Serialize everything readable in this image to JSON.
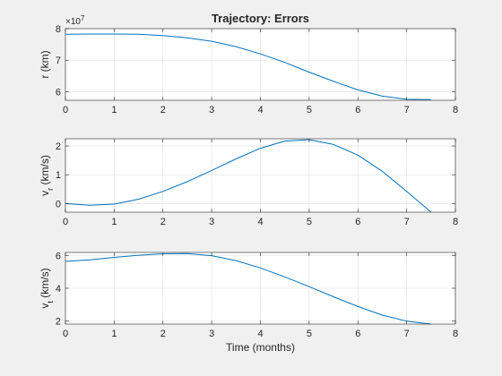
{
  "figure": {
    "title": "Trajectory: Errors",
    "background": "#f0f0f0",
    "axes_background": "#ffffff",
    "line_color": "#0072bd",
    "grid_color": "#dfdfdf",
    "axis_color": "#262626"
  },
  "chart_data": [
    {
      "type": "line",
      "title": "Trajectory: Errors",
      "xlabel": "",
      "ylabel": "r (km)",
      "y_exponent_label": "×10",
      "y_exponent": "7",
      "xlim": [
        0,
        8
      ],
      "ylim": [
        5.73,
        8.0
      ],
      "xticks": [
        0,
        1,
        2,
        3,
        4,
        5,
        6,
        7,
        8
      ],
      "xtick_labels": [
        "0",
        "1",
        "2",
        "3",
        "4",
        "5",
        "6",
        "7",
        "8"
      ],
      "yticks": [
        6,
        7,
        8
      ],
      "ytick_labels": [
        "6",
        "7",
        "8"
      ],
      "grid": true,
      "x": [
        0,
        0.5,
        1,
        1.5,
        2,
        2.5,
        3,
        3.5,
        4,
        4.5,
        5,
        5.5,
        6,
        6.5,
        7,
        7.5
      ],
      "y": [
        7.82,
        7.83,
        7.83,
        7.82,
        7.78,
        7.71,
        7.6,
        7.43,
        7.2,
        6.93,
        6.62,
        6.33,
        6.06,
        5.86,
        5.76,
        5.75
      ]
    },
    {
      "type": "line",
      "ylabel_main": "v",
      "ylabel_sub": "r",
      "ylabel_unit": " (km/s)",
      "xlabel": "",
      "xlim": [
        0,
        8
      ],
      "ylim": [
        -0.3,
        2.25
      ],
      "xticks": [
        0,
        1,
        2,
        3,
        4,
        5,
        6,
        7,
        8
      ],
      "xtick_labels": [
        "0",
        "1",
        "2",
        "3",
        "4",
        "5",
        "6",
        "7",
        "8"
      ],
      "yticks": [
        0,
        1,
        2
      ],
      "ytick_labels": [
        "0",
        "1",
        "2"
      ],
      "grid": true,
      "x": [
        0,
        0.5,
        1,
        1.5,
        2,
        2.5,
        3,
        3.5,
        4,
        4.5,
        5,
        5.5,
        6,
        6.5,
        7,
        7.5
      ],
      "y": [
        0.0,
        -0.06,
        -0.02,
        0.15,
        0.42,
        0.76,
        1.15,
        1.55,
        1.92,
        2.17,
        2.22,
        2.05,
        1.68,
        1.12,
        0.42,
        -0.3
      ]
    },
    {
      "type": "line",
      "ylabel_main": "v",
      "ylabel_sub": "t",
      "ylabel_unit": " (km/s)",
      "xlabel": "Time (months)",
      "xlim": [
        0,
        8
      ],
      "ylim": [
        1.8,
        6.2
      ],
      "xticks": [
        0,
        1,
        2,
        3,
        4,
        5,
        6,
        7,
        8
      ],
      "xtick_labels": [
        "0",
        "1",
        "2",
        "3",
        "4",
        "5",
        "6",
        "7",
        "8"
      ],
      "yticks": [
        2,
        4,
        6
      ],
      "ytick_labels": [
        "2",
        "4",
        "6"
      ],
      "grid": true,
      "x": [
        0,
        0.5,
        1,
        1.5,
        2,
        2.5,
        3,
        3.5,
        4,
        4.5,
        5,
        5.5,
        6,
        6.5,
        7,
        7.5
      ],
      "y": [
        5.65,
        5.75,
        5.9,
        6.03,
        6.12,
        6.13,
        6.0,
        5.7,
        5.25,
        4.7,
        4.1,
        3.48,
        2.88,
        2.35,
        1.98,
        1.8
      ]
    }
  ]
}
